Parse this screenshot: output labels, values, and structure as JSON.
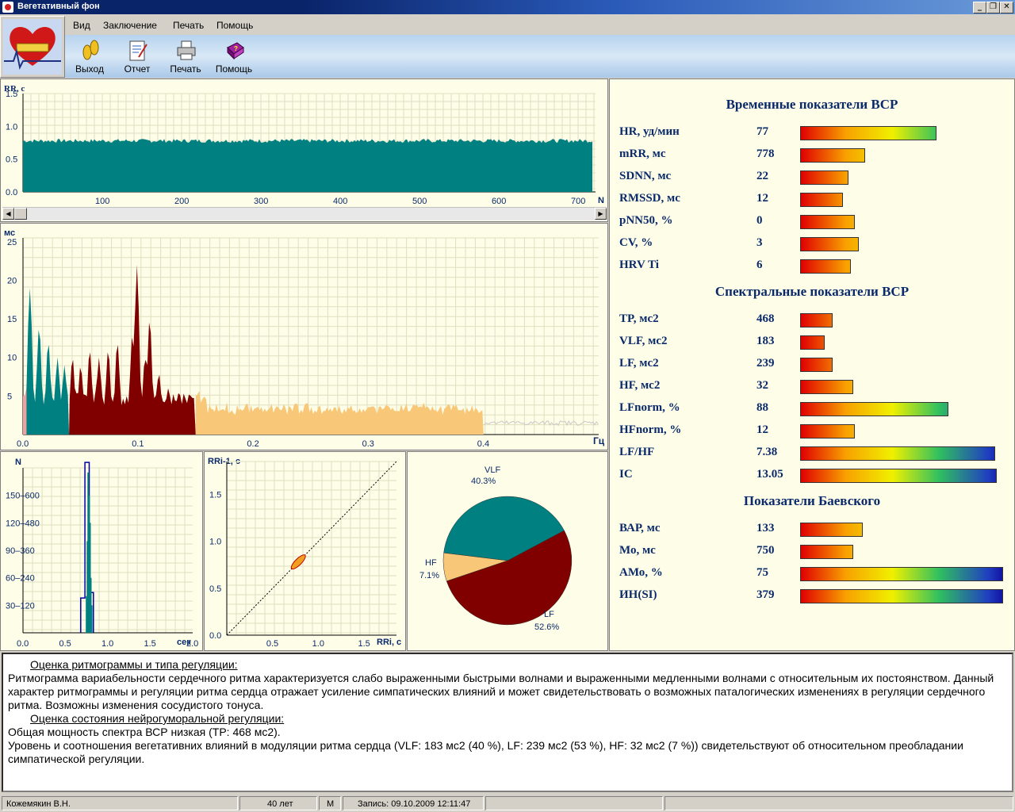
{
  "window": {
    "title": "Вегетативный фон"
  },
  "menu": [
    "Вид",
    "Заключение",
    "Печать",
    "Помощь"
  ],
  "toolbar": [
    {
      "label": "Выход",
      "icon": "footprints-icon"
    },
    {
      "label": "Отчет",
      "icon": "report-icon"
    },
    {
      "label": "Печать",
      "icon": "printer-icon"
    },
    {
      "label": "Помощь",
      "icon": "help-book-icon"
    }
  ],
  "rhythmogram": {
    "ylabel": "RR, с",
    "xlabel": "N",
    "yticks": [
      "1.5",
      "1.0",
      "0.5",
      "0.0"
    ],
    "xticks": [
      "100",
      "200",
      "300",
      "400",
      "500",
      "600",
      "700"
    ]
  },
  "spectrum": {
    "ylabel": "мс",
    "xlabel": "Гц",
    "yticks": [
      "25",
      "20",
      "15",
      "10",
      "5"
    ],
    "xticks": [
      "0.0",
      "0.1",
      "0.2",
      "0.3",
      "0.4"
    ]
  },
  "histogram": {
    "ylabel": "N",
    "xlabel": "сек",
    "yticks": [
      "150–600",
      "120–480",
      "90–360",
      "60–240",
      "30–120"
    ],
    "xticks": [
      "0.0",
      "0.5",
      "1.0",
      "1.5",
      "2.0"
    ]
  },
  "scatter": {
    "ylabel": "RRi-1, с",
    "xlabel": "RRi, с",
    "yticks": [
      "1.5",
      "1.0",
      "0.5",
      "0.0"
    ],
    "xticks": [
      "0.5",
      "1.0",
      "1.5"
    ]
  },
  "pie": {
    "slices": [
      {
        "name": "VLF",
        "pct": "40.3%",
        "value": 40.3,
        "color": "#008080"
      },
      {
        "name": "LF",
        "pct": "52.6%",
        "value": 52.6,
        "color": "#800000"
      },
      {
        "name": "HF",
        "pct": "7.1%",
        "value": 7.1,
        "color": "#f8c878"
      }
    ]
  },
  "indicators": {
    "time_title": "Временные показатели ВСР",
    "time": [
      {
        "label": "HR, уд/мин",
        "value": "77",
        "fill": 0.67
      },
      {
        "label": "mRR, мс",
        "value": "778",
        "fill": 0.32
      },
      {
        "label": "SDNN, мс",
        "value": "22",
        "fill": 0.24
      },
      {
        "label": "RMSSD, мс",
        "value": "12",
        "fill": 0.21
      },
      {
        "label": "pNN50, %",
        "value": "0",
        "fill": 0.27
      },
      {
        "label": "CV, %",
        "value": "3",
        "fill": 0.29
      },
      {
        "label": "HRV Ti",
        "value": "6",
        "fill": 0.25
      }
    ],
    "spectral_title": "Спектральные показатели ВСР",
    "spectral": [
      {
        "label": "TP, мс2",
        "value": "468",
        "fill": 0.16
      },
      {
        "label": "VLF, мс2",
        "value": "183",
        "fill": 0.12
      },
      {
        "label": "LF, мс2",
        "value": "239",
        "fill": 0.16
      },
      {
        "label": "HF, мс2",
        "value": "32",
        "fill": 0.26
      },
      {
        "label": "LFnorm, %",
        "value": "88",
        "fill": 0.73
      },
      {
        "label": "HFnorm, %",
        "value": "12",
        "fill": 0.27
      },
      {
        "label": "LF/HF",
        "value": "7.38",
        "fill": 0.96
      },
      {
        "label": "IC",
        "value": "13.05",
        "fill": 0.97
      }
    ],
    "baevsky_title": "Показатели Баевского",
    "baevsky": [
      {
        "label": "ВАР, мс",
        "value": "133",
        "fill": 0.31
      },
      {
        "label": "Мо, мс",
        "value": "750",
        "fill": 0.26
      },
      {
        "label": "АМо, %",
        "value": "75",
        "fill": 1.0
      },
      {
        "label": "ИН(SI)",
        "value": "379",
        "fill": 1.0
      }
    ]
  },
  "report": {
    "h1": "Оценка ритмограммы и типа регуляции:",
    "p1": "Ритмограмма вариабельности сердечного ритма характеризуется слабо выраженными быстрыми волнами и выраженными медленными волнами с относительным их постоянством. Данный характер ритмограммы и регуляции ритма сердца отражает усиление симпатических влияний и может свидетельствовать о возможных паталогических изменениях в регуляции сердечного ритма. Возможны изменения сосудистого тонуса.",
    "h2": "Оценка состояния нейрогуморальной регуляции:",
    "p2": "Общая мощность спектра ВСР низкая (TP: 468 мс2).",
    "p3": "Уровень и соотношения вегетативних влияний в модуляции ритма сердца (VLF: 183 мс2 (40 %), LF: 239 мс2 (53 %), HF: 32 мс2 (7 %)) свидетельствуют об относительном преобладании симпатической регуляции."
  },
  "status": {
    "name": "Кожемякин В.Н.",
    "age": "40 лет",
    "sex": "М",
    "record": "Запись: 09.10.2009 12:11:47"
  }
}
